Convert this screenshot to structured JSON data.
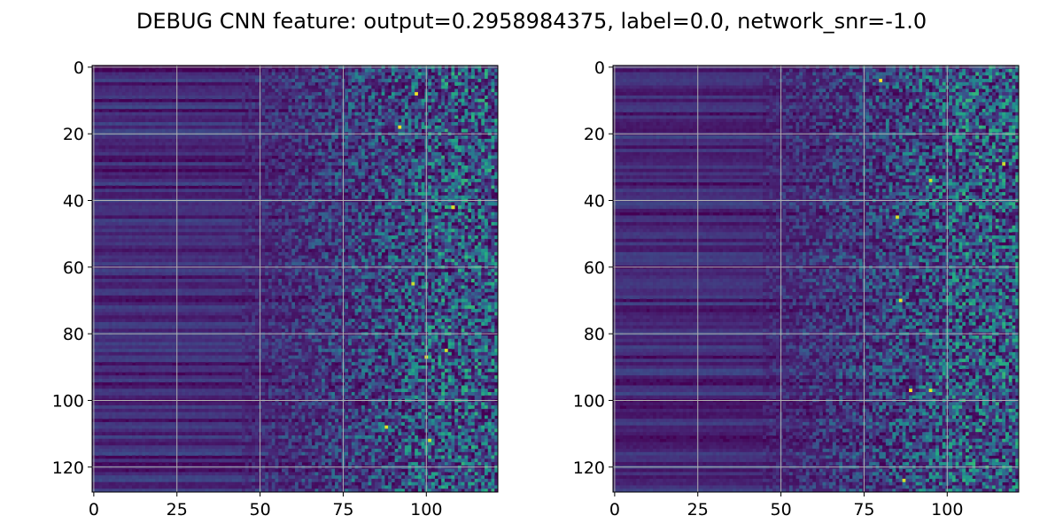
{
  "chart_data": {
    "type": "heatmap",
    "title": "DEBUG CNN feature: output=0.2958984375, label=0.0, network_snr=-1.0",
    "colormap": "viridis",
    "grid": true,
    "panels": [
      {
        "name": "",
        "rows": 128,
        "cols": 122,
        "xlim": [
          -0.5,
          121.5
        ],
        "ylim": [
          127.5,
          -0.5
        ],
        "xticks": [
          0,
          25,
          50,
          75,
          100
        ],
        "yticks": [
          0,
          20,
          40,
          60,
          80,
          100,
          120
        ],
        "seed": 12345,
        "hot_cells": [
          [
            8,
            97
          ],
          [
            18,
            92
          ],
          [
            42,
            108
          ],
          [
            65,
            96
          ],
          [
            85,
            106
          ],
          [
            87,
            100
          ],
          [
            108,
            88
          ],
          [
            112,
            101
          ]
        ]
      },
      {
        "name": "",
        "rows": 128,
        "cols": 122,
        "xlim": [
          -0.5,
          121.5
        ],
        "ylim": [
          127.5,
          -0.5
        ],
        "xticks": [
          0,
          25,
          50,
          75,
          100
        ],
        "yticks": [
          0,
          20,
          40,
          60,
          80,
          100,
          120
        ],
        "seed": 67890,
        "hot_cells": [
          [
            4,
            80
          ],
          [
            29,
            117
          ],
          [
            34,
            95
          ],
          [
            45,
            85
          ],
          [
            70,
            86
          ],
          [
            97,
            89
          ],
          [
            97,
            95
          ],
          [
            124,
            87
          ]
        ]
      }
    ]
  }
}
